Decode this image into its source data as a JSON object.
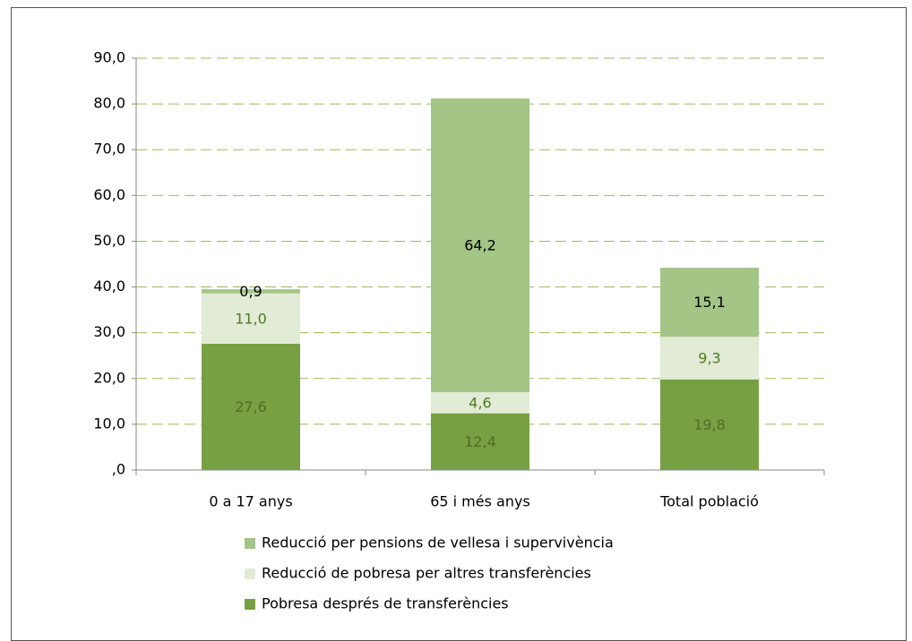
{
  "chart_data": {
    "type": "bar",
    "stacked": true,
    "categories": [
      "0 a 17 anys",
      "65 i més anys",
      "Total població"
    ],
    "series": [
      {
        "name": "Pobresa després de transferències",
        "color": "#77a043",
        "values": [
          27.6,
          12.4,
          19.8
        ],
        "value_labels": [
          "27,6",
          "12,4",
          "19,8"
        ]
      },
      {
        "name": "Reducció de pobresa per altres transferències",
        "color": "#e2ebd5",
        "values": [
          11.0,
          4.6,
          9.3
        ],
        "value_labels": [
          "11,0",
          "4,6",
          "9,3"
        ]
      },
      {
        "name": "Reducció per pensions de vellesa i supervivència",
        "color": "#a3c585",
        "values": [
          0.9,
          64.2,
          15.1
        ],
        "value_labels": [
          "0,9",
          "64,2",
          "15,1"
        ]
      }
    ],
    "ylim": [
      0,
      90
    ],
    "yticks": [
      {
        "value": 0,
        "label": ",0"
      },
      {
        "value": 10,
        "label": "10,0"
      },
      {
        "value": 20,
        "label": "20,0"
      },
      {
        "value": 30,
        "label": "30,0"
      },
      {
        "value": 40,
        "label": "40,0"
      },
      {
        "value": 50,
        "label": "50,0"
      },
      {
        "value": 60,
        "label": "60,0"
      },
      {
        "value": 70,
        "label": "70,0"
      },
      {
        "value": 80,
        "label": "80,0"
      },
      {
        "value": 90,
        "label": "90,0"
      }
    ],
    "grid": true,
    "legend": "bottom"
  }
}
